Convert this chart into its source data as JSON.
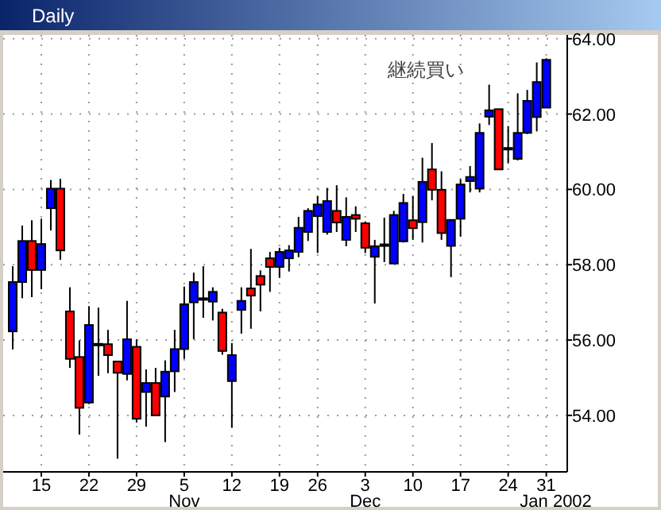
{
  "chart_data": {
    "type": "candlestick",
    "title": "Daily",
    "categories": [
      null,
      null,
      null,
      "15",
      null,
      null,
      null,
      null,
      "22",
      null,
      null,
      null,
      null,
      "29",
      null,
      null,
      null,
      null,
      "5",
      null,
      null,
      null,
      null,
      "12",
      null,
      null,
      null,
      null,
      "19",
      null,
      null,
      null,
      "26",
      null,
      null,
      null,
      null,
      "3",
      null,
      null,
      null,
      null,
      "10",
      null,
      null,
      null,
      null,
      "17",
      null,
      null,
      null,
      null,
      "24",
      null,
      null,
      null,
      "31",
      null
    ],
    "ohlc": [
      [
        56.23,
        57.96,
        55.75,
        57.54
      ],
      [
        57.54,
        59.04,
        57.11,
        58.63
      ],
      [
        58.63,
        59.18,
        57.14,
        57.86
      ],
      [
        57.86,
        59.22,
        57.35,
        58.55
      ],
      [
        59.5,
        60.25,
        58.91,
        60.02
      ],
      [
        60.02,
        60.28,
        58.13,
        58.38
      ],
      [
        56.76,
        57.4,
        55.26,
        55.5
      ],
      [
        55.55,
        55.99,
        53.49,
        54.2
      ],
      [
        54.34,
        56.9,
        54.3,
        56.4
      ],
      [
        55.9,
        56.86,
        55.05,
        55.89
      ],
      [
        55.89,
        56.27,
        55.12,
        55.6
      ],
      [
        55.43,
        55.43,
        52.85,
        55.13
      ],
      [
        55.1,
        57.04,
        54.93,
        56.02
      ],
      [
        55.82,
        56.02,
        53.81,
        53.91
      ],
      [
        54.62,
        55.22,
        53.7,
        54.86
      ],
      [
        54.86,
        55.26,
        54.0,
        54.0
      ],
      [
        54.5,
        55.46,
        53.29,
        55.16
      ],
      [
        55.17,
        56.27,
        54.62,
        55.76
      ],
      [
        55.76,
        57.42,
        55.5,
        56.95
      ],
      [
        57.0,
        57.79,
        56.02,
        57.54
      ],
      [
        57.11,
        57.96,
        56.59,
        57.07
      ],
      [
        57.02,
        57.4,
        56.52,
        57.28
      ],
      [
        56.73,
        56.83,
        55.61,
        55.71
      ],
      [
        54.91,
        55.92,
        53.67,
        55.6
      ],
      [
        56.8,
        57.4,
        56.17,
        57.04
      ],
      [
        57.37,
        58.42,
        56.3,
        57.18
      ],
      [
        57.7,
        57.85,
        56.76,
        57.47
      ],
      [
        58.17,
        58.34,
        57.28,
        57.94
      ],
      [
        57.94,
        58.45,
        57.65,
        58.34
      ],
      [
        58.17,
        58.52,
        57.82,
        58.38
      ],
      [
        58.34,
        59.27,
        58.2,
        58.98
      ],
      [
        58.87,
        59.5,
        58.63,
        59.43
      ],
      [
        59.29,
        59.83,
        58.31,
        59.6
      ],
      [
        58.87,
        60.04,
        58.8,
        59.69
      ],
      [
        59.43,
        60.11,
        58.87,
        59.12
      ],
      [
        58.66,
        59.79,
        58.49,
        59.27
      ],
      [
        59.32,
        59.55,
        58.87,
        59.22
      ],
      [
        59.1,
        59.15,
        58.31,
        58.45
      ],
      [
        58.21,
        58.66,
        56.97,
        58.49
      ],
      [
        58.54,
        59.25,
        58.07,
        58.52
      ],
      [
        58.03,
        59.43,
        58.03,
        59.32
      ],
      [
        58.62,
        59.88,
        58.59,
        59.64
      ],
      [
        59.18,
        59.83,
        58.66,
        58.97
      ],
      [
        59.13,
        60.84,
        58.59,
        60.2
      ],
      [
        60.53,
        61.23,
        59.71,
        59.99
      ],
      [
        59.99,
        60.48,
        58.66,
        58.84
      ],
      [
        58.5,
        59.19,
        57.67,
        59.19
      ],
      [
        59.22,
        60.27,
        58.75,
        60.13
      ],
      [
        60.22,
        60.62,
        59.92,
        60.33
      ],
      [
        60.02,
        61.75,
        59.92,
        61.5
      ],
      [
        61.93,
        62.78,
        61.71,
        62.1
      ],
      [
        62.13,
        62.13,
        60.53,
        60.53
      ],
      [
        61.1,
        61.68,
        60.69,
        61.09
      ],
      [
        60.81,
        62.55,
        60.77,
        61.5
      ],
      [
        61.5,
        62.64,
        61.47,
        62.35
      ],
      [
        61.92,
        63.37,
        61.54,
        62.85
      ],
      [
        62.17,
        63.48,
        62.17,
        63.44
      ],
      null
    ],
    "colors": [
      "#0000ff",
      "#0000ff",
      "#ff0000",
      "#0000ff",
      "#0000ff",
      "#ff0000",
      "#ff0000",
      "#ff0000",
      "#0000ff",
      "#ff0000",
      "#ff0000",
      "#ff0000",
      "#0000ff",
      "#ff0000",
      "#0000ff",
      "#ff0000",
      "#0000ff",
      "#0000ff",
      "#0000ff",
      "#0000ff",
      "#ff0000",
      "#0000ff",
      "#ff0000",
      "#0000ff",
      "#0000ff",
      "#ff0000",
      "#ff0000",
      "#ff0000",
      "#0000ff",
      "#0000ff",
      "#0000ff",
      "#0000ff",
      "#0000ff",
      "#0000ff",
      "#ff0000",
      "#0000ff",
      "#ff0000",
      "#ff0000",
      "#0000ff",
      "#ff0000",
      "#0000ff",
      "#0000ff",
      "#ff0000",
      "#0000ff",
      "#ff0000",
      "#ff0000",
      "#0000ff",
      "#0000ff",
      "#0000ff",
      "#0000ff",
      "#0000ff",
      "#ff0000",
      "#ff0000",
      "#0000ff",
      "#0000ff",
      "#0000ff",
      "#0000ff",
      null
    ],
    "ylim": [
      52.5,
      64.1
    ],
    "yticks": [
      {
        "value": 54,
        "label": "54.00"
      },
      {
        "value": 56,
        "label": "56.00"
      },
      {
        "value": 58,
        "label": "58.00"
      },
      {
        "value": 60,
        "label": "60.00"
      },
      {
        "value": 62,
        "label": "62.00"
      },
      {
        "value": 64,
        "label": "64.00"
      }
    ],
    "grid": true,
    "annotations": [
      "継続買い",
      "Nov",
      "Dec",
      "Jan 2002"
    ]
  }
}
